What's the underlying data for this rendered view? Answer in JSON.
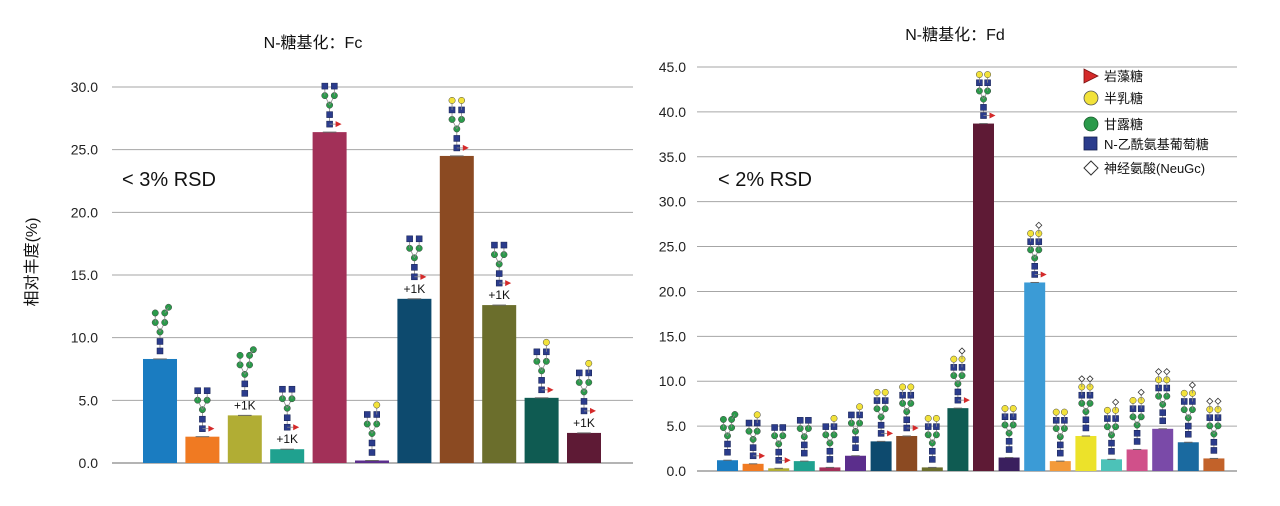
{
  "colors": {
    "fucose": "#d42a2a",
    "galactose": "#f2e23a",
    "mannose": "#2a9a4a",
    "glcnac": "#2b3c8c",
    "neugc": "#ffffff"
  },
  "chart_data": [
    {
      "type": "bar",
      "title": "N-糖基化：Fc",
      "ylabel": "相对丰度(%)",
      "ylim": [
        0,
        30
      ],
      "ytick_labels": [
        "0.0",
        "5.0",
        "10.0",
        "15.0",
        "20.0",
        "25.0",
        "30.0"
      ],
      "rsd_note": "< 3% RSD",
      "values": [
        8.3,
        2.1,
        3.8,
        1.1,
        26.4,
        0.2,
        13.1,
        24.5,
        12.6,
        5.2,
        2.4
      ],
      "colors": [
        "#1a7cc1",
        "#f07a22",
        "#b1ad34",
        "#1fa18f",
        "#a23058",
        "#5b2e8c",
        "#0d4a6e",
        "#8b4a22",
        "#6b6e2c",
        "#0f5b52",
        "#5e1a35"
      ],
      "annotations": [
        {
          "bar": 2,
          "text": "+1K"
        },
        {
          "bar": 3,
          "text": "+1K"
        },
        {
          "bar": 6,
          "text": "+1K"
        },
        {
          "bar": 8,
          "text": "+1K"
        },
        {
          "bar": 10,
          "text": "+1K"
        }
      ]
    },
    {
      "type": "bar",
      "title": "N-糖基化：Fd",
      "ylim": [
        0,
        45
      ],
      "ytick_labels": [
        "0.0",
        "5.0",
        "10.0",
        "15.0",
        "20.0",
        "25.0",
        "30.0",
        "35.0",
        "40.0",
        "45.0"
      ],
      "rsd_note": "< 2% RSD",
      "values": [
        1.2,
        0.8,
        0.3,
        1.1,
        0.4,
        1.7,
        3.3,
        3.9,
        0.4,
        7.0,
        38.7,
        1.5,
        21.0,
        1.1,
        3.9,
        1.3,
        2.4,
        4.7,
        3.2,
        1.4
      ],
      "colors": [
        "#1a7cc1",
        "#f07a22",
        "#b1ad34",
        "#1fa18f",
        "#a23058",
        "#5b2e8c",
        "#0d4a6e",
        "#8b4a22",
        "#6b6e2c",
        "#0f5b52",
        "#5e1a35",
        "#3a1f5e",
        "#3b9bd6",
        "#f39a3a",
        "#ece22a",
        "#4cc2b8",
        "#d0508a",
        "#7a4aa8",
        "#1a6aa0",
        "#c2622a"
      ]
    }
  ],
  "legend": [
    {
      "shape": "triangle",
      "label": "岩藻糖"
    },
    {
      "shape": "circle",
      "label": "半乳糖"
    },
    {
      "shape": "circle-green",
      "label": "甘露糖"
    },
    {
      "shape": "square",
      "label": "N-乙酰氨基葡萄糖"
    },
    {
      "shape": "diamond",
      "label": "神经氨酸(NeuGc)"
    }
  ]
}
